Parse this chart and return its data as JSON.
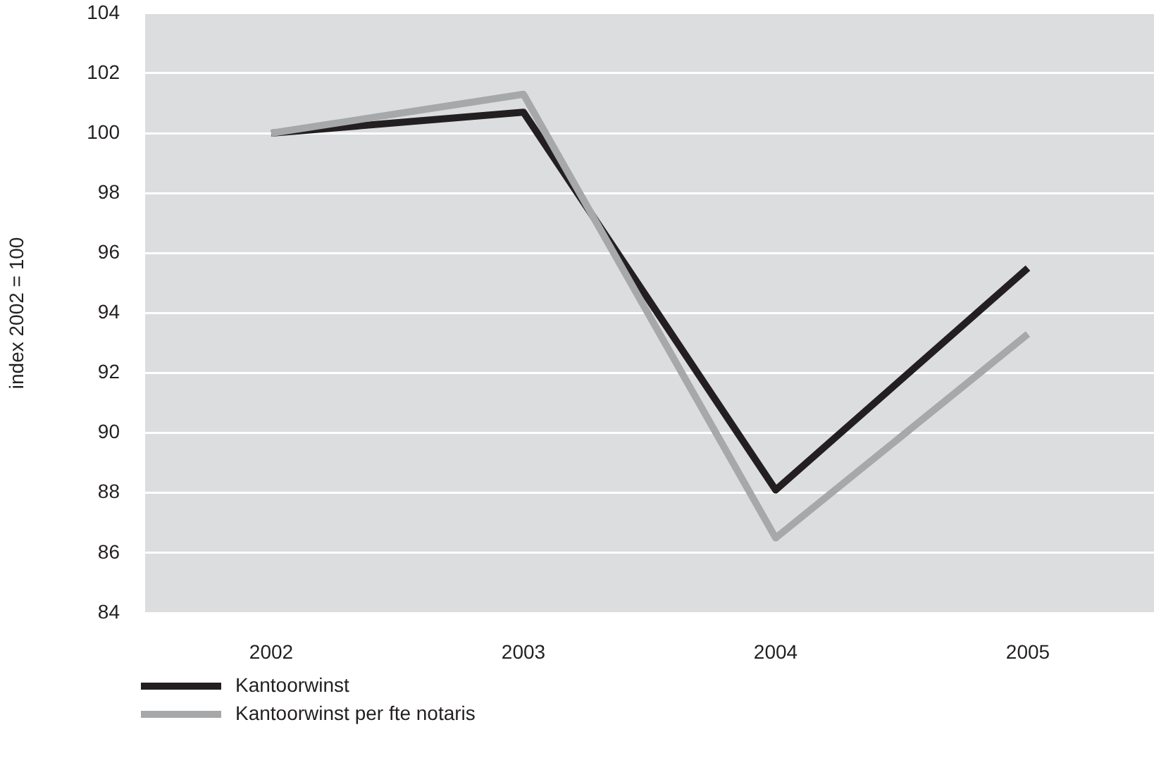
{
  "chart_data": {
    "type": "line",
    "categories": [
      "2002",
      "2003",
      "2004",
      "2005"
    ],
    "ylabel": "index 2002 = 100",
    "ylim": [
      84,
      104
    ],
    "yticks": [
      84,
      86,
      88,
      90,
      92,
      94,
      96,
      98,
      100,
      102,
      104
    ],
    "grid": "y",
    "legend": "bottom left",
    "marker": "none",
    "line_style": "solid",
    "series": [
      {
        "name": "Kantoorwinst",
        "color": "#231f20",
        "values": [
          100,
          100.7,
          88.1,
          95.5
        ]
      },
      {
        "name": "Kantoorwinst per fte notaris",
        "color": "#a7a8aa",
        "values": [
          100,
          101.3,
          86.5,
          93.3
        ]
      }
    ]
  }
}
